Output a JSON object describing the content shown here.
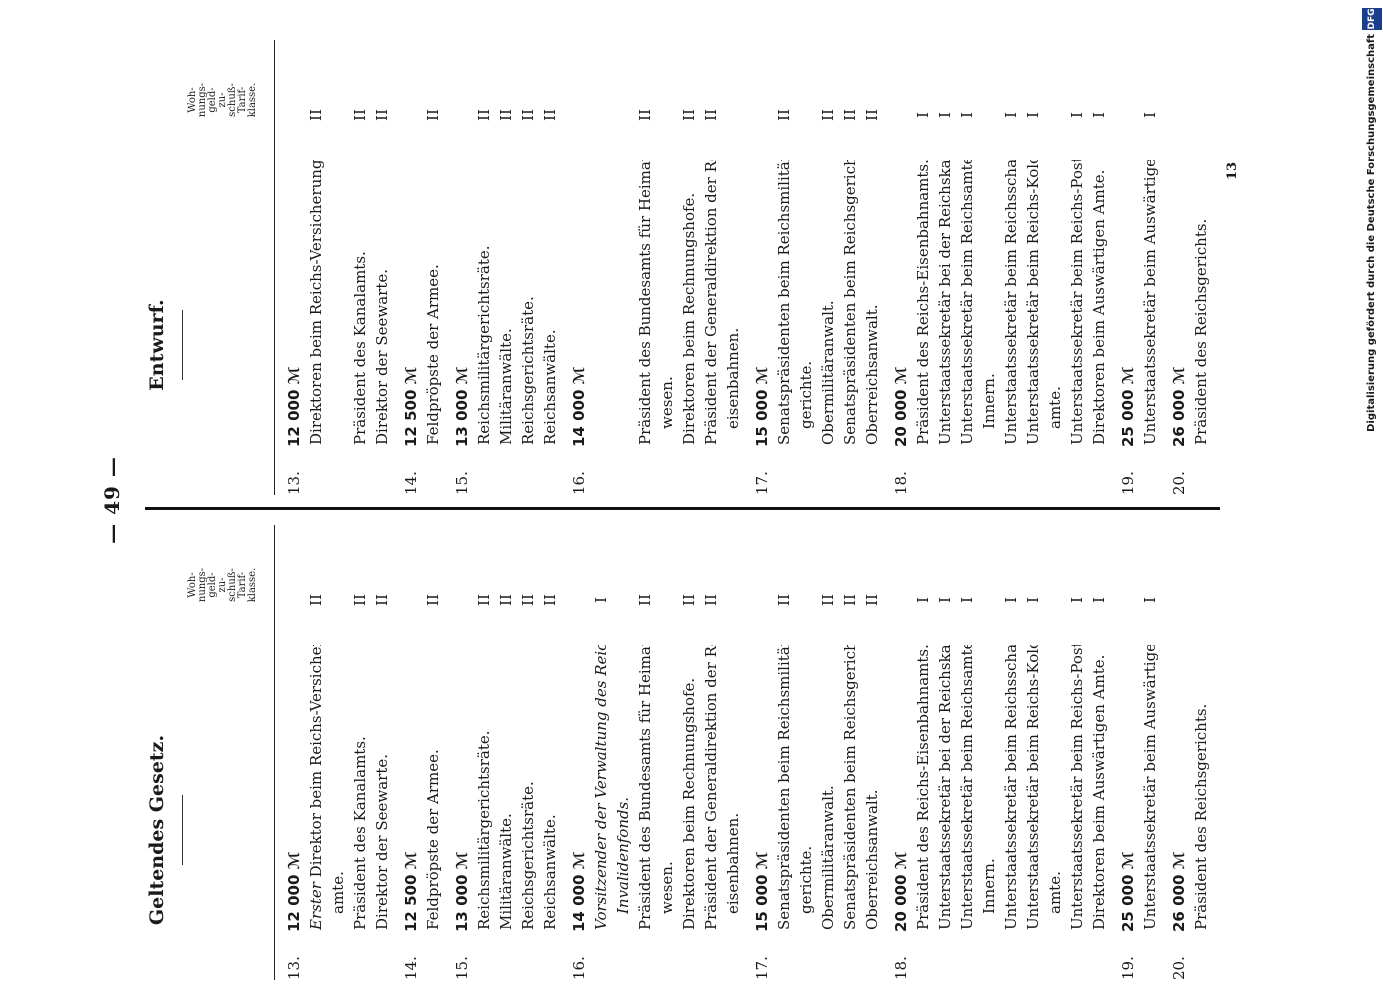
{
  "page_number": "— 49 —",
  "signature": "13",
  "left": {
    "heading": "Geltendes Gesetz.",
    "tariff_header": [
      "Woh-",
      "nungs-",
      "geld-",
      "zu-",
      "schuß-",
      "Tarif-",
      "klasse."
    ],
    "rows": [
      {
        "num": "13.",
        "amount": "12 000 ℳ"
      },
      {
        "text": "Erster Direktor beim Reichs-Versicherungs-",
        "italic_prefix": "Erster",
        "class": "II"
      },
      {
        "text": "amte.",
        "indent": true
      },
      {
        "text": "Präsident des Kanalamts.",
        "class": "II"
      },
      {
        "text": "Direktor der Seewarte.",
        "class": "II"
      },
      {
        "num": "14.",
        "amount": "12 500 ℳ"
      },
      {
        "text": "Feldpröpste der Armee.",
        "class": "II"
      },
      {
        "num": "15.",
        "amount": "13 000 ℳ"
      },
      {
        "text": "Reichsmilitärgerichtsräte.",
        "class": "II"
      },
      {
        "text": "Militäranwälte.",
        "class": "II"
      },
      {
        "text": "Reichsgerichtsräte.",
        "class": "II"
      },
      {
        "text": "Reichsanwälte.",
        "class": "II"
      },
      {
        "num": "16.",
        "amount": "14 000 ℳ"
      },
      {
        "text": "Vorsitzender der Verwaltung des Reichs-",
        "italic": true,
        "class": "I"
      },
      {
        "text": "Invalidenfonds.",
        "italic": true,
        "indent": true
      },
      {
        "text": "Präsident des Bundesamts für Heimat-",
        "class": "II"
      },
      {
        "text": "wesen.",
        "indent": true
      },
      {
        "text": "Direktoren beim Rechnungshofe.",
        "class": "II"
      },
      {
        "text": "Präsident der Generaldirektion der Reichs-",
        "class": "II"
      },
      {
        "text": "eisenbahnen.",
        "indent": true
      },
      {
        "num": "17.",
        "amount": "15 000 ℳ"
      },
      {
        "text": "Senatspräsidenten beim Reichsmilitär-",
        "class": "II"
      },
      {
        "text": "gerichte.",
        "indent": true
      },
      {
        "text": "Obermilitäranwalt.",
        "class": "II"
      },
      {
        "text": "Senatspräsidenten beim Reichsgerichte.",
        "class": "II"
      },
      {
        "text": "Oberreichsanwalt.",
        "class": "II"
      },
      {
        "num": "18.",
        "amount": "20 000 ℳ"
      },
      {
        "text": "Präsident des Reichs-Eisenbahnamts.",
        "class": "I"
      },
      {
        "text": "Unterstaatssekretär bei der Reichskanzlei.",
        "class": "I"
      },
      {
        "text": "Unterstaatssekretär beim Reichsamte des",
        "class": "I"
      },
      {
        "text": "Innern.",
        "indent": true
      },
      {
        "text": "Unterstaatssekretär beim Reichsschatzamte.",
        "class": "I"
      },
      {
        "text": "Unterstaatssekretär beim Reichs-Kolonial-",
        "class": "I"
      },
      {
        "text": "amte.",
        "indent": true
      },
      {
        "text": "Unterstaatssekretär beim Reichs-Postamte.",
        "class": "I"
      },
      {
        "text": "Direktoren beim Auswärtigen Amte.",
        "class": "I"
      },
      {
        "num": "19.",
        "amount": "25 000 ℳ"
      },
      {
        "text": "Unterstaatssekretär beim Auswärtigen Amte.",
        "class": "I"
      },
      {
        "num": "20.",
        "amount": "26 000 ℳ"
      },
      {
        "text": "Präsident des Reichsgerichts."
      }
    ]
  },
  "right": {
    "heading": "Entwurf.",
    "tariff_header": [
      "Woh-",
      "nungs-",
      "geld-",
      "zu-",
      "schuß-",
      "Tarif-",
      "klasse."
    ],
    "rows": [
      {
        "num": "13.",
        "amount": "12 000 ℳ"
      },
      {
        "text": "Direktoren beim Reichs-Versicherungsamte.",
        "class": "II"
      },
      {
        "spacer": true
      },
      {
        "text": "Präsident des Kanalamts.",
        "class": "II"
      },
      {
        "text": "Direktor der Seewarte.",
        "class": "II"
      },
      {
        "num": "14.",
        "amount": "12 500 ℳ"
      },
      {
        "text": "Feldpröpste der Armee.",
        "class": "II"
      },
      {
        "num": "15.",
        "amount": "13 000 ℳ"
      },
      {
        "text": "Reichsmilitärgerichtsräte.",
        "class": "II"
      },
      {
        "text": "Militäranwälte.",
        "class": "II"
      },
      {
        "text": "Reichsgerichtsräte.",
        "class": "II"
      },
      {
        "text": "Reichsanwälte.",
        "class": "II"
      },
      {
        "num": "16.",
        "amount": "14 000 ℳ"
      },
      {
        "spacer": true
      },
      {
        "spacer": true
      },
      {
        "text": "Präsident des Bundesamts für Heimat-",
        "class": "II"
      },
      {
        "text": "wesen.",
        "indent": true
      },
      {
        "text": "Direktoren beim Rechnungshofe.",
        "class": "II"
      },
      {
        "text": "Präsident der Generaldirektion der Reichs-",
        "class": "II"
      },
      {
        "text": "eisenbahnen.",
        "indent": true
      },
      {
        "num": "17.",
        "amount": "15 000 ℳ"
      },
      {
        "text": "Senatspräsidenten beim Reichsmilitär-",
        "class": "II"
      },
      {
        "text": "gerichte.",
        "indent": true
      },
      {
        "text": "Obermilitäranwalt.",
        "class": "II"
      },
      {
        "text": "Senatspräsidenten beim Reichsgerichte.",
        "class": "II"
      },
      {
        "text": "Oberreichsanwalt.",
        "class": "II"
      },
      {
        "num": "18.",
        "amount": "20 000 ℳ"
      },
      {
        "text": "Präsident des Reichs-Eisenbahnamts.",
        "class": "I"
      },
      {
        "text": "Unterstaatssekretär bei der Reichskanzlei.",
        "class": "I"
      },
      {
        "text": "Unterstaatssekretär beim Reichsamte des",
        "class": "I"
      },
      {
        "text": "Innern.",
        "indent": true
      },
      {
        "text": "Unterstaatssekretär beim Reichsschatzamte.",
        "class": "I"
      },
      {
        "text": "Unterstaatssekretär beim Reichs-Kolonial-",
        "class": "I"
      },
      {
        "text": "amte.",
        "indent": true
      },
      {
        "text": "Unterstaatssekretär beim Reichs-Postamte.",
        "class": "I"
      },
      {
        "text": "Direktoren beim Auswärtigen Amte.",
        "class": "I"
      },
      {
        "num": "19.",
        "amount": "25 000 ℳ"
      },
      {
        "text": "Unterstaatssekretär beim Auswärtigen Amte.",
        "class": "I"
      },
      {
        "num": "20.",
        "amount": "26 000 ℳ"
      },
      {
        "text": "Präsident des Reichsgerichts."
      }
    ]
  },
  "digitization_note": "Digitalisierung gefördert durch die Deutsche Forschungsgemeinschaft",
  "dfg_logo": "DFG"
}
